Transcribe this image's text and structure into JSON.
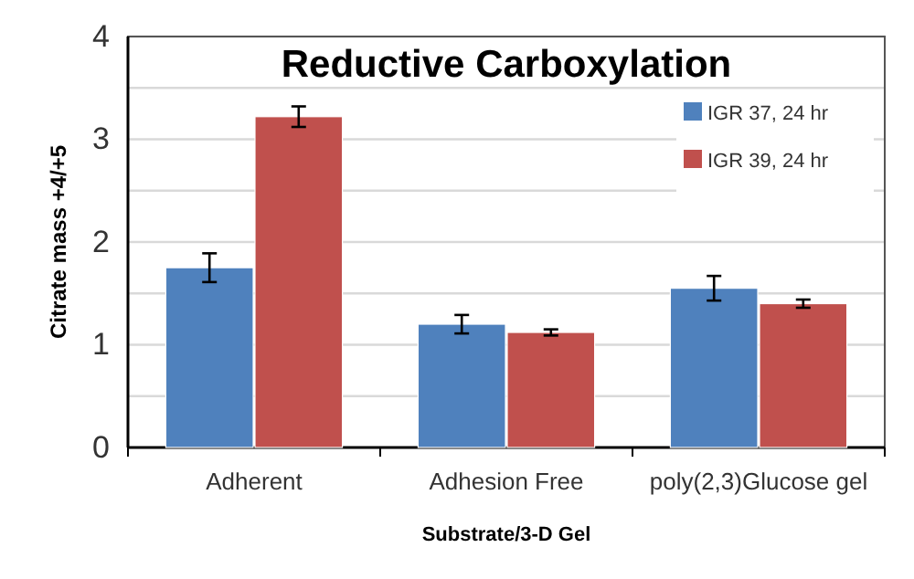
{
  "chart_data": {
    "type": "bar",
    "title": "Reductive Carboxylation",
    "xlabel": "Substrate/3-D Gel",
    "ylabel": "Citrate mass  +4/+5",
    "categories": [
      "Adherent",
      "Adhesion Free",
      "poly(2,3)Glucose gel"
    ],
    "series": [
      {
        "name": "IGR 37, 24 hr",
        "color": "#4f81bd",
        "values": [
          1.75,
          1.2,
          1.55
        ],
        "errors": [
          0.14,
          0.09,
          0.12
        ]
      },
      {
        "name": "IGR 39, 24 hr",
        "color": "#c0504d",
        "values": [
          3.22,
          1.12,
          1.4
        ],
        "errors": [
          0.1,
          0.03,
          0.04
        ]
      }
    ],
    "ylim": [
      0,
      4
    ],
    "yticks": [
      0,
      {
        "value": 0.5,
        "label": null
      },
      1,
      {
        "value": 1.5,
        "label": null
      },
      2,
      {
        "value": 2.5,
        "label": null
      },
      3,
      {
        "value": 3.5,
        "label": null
      },
      4
    ],
    "grid": "y",
    "legend": "top right"
  }
}
